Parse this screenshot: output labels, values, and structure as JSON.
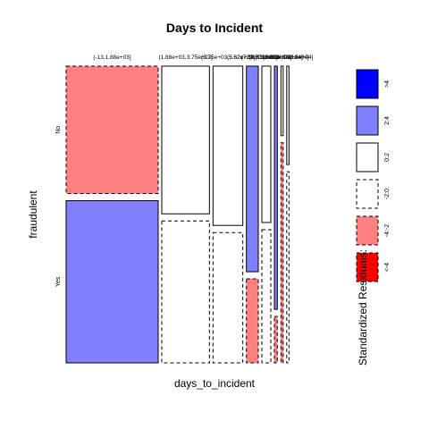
{
  "chart_data": {
    "type": "mosaic",
    "title": "Days to Incident",
    "xlabel": "days_to_incident",
    "ylabel": "fraudulent",
    "categories": [
      "(-13,1.88e+03]",
      "(1.88e+03,3.75e+03]",
      "(3.75e+03,5.62e+03]",
      "(5.62e+03,7.5e+03]",
      "(7.5e+03,9.37e+03]",
      "(9.37e+03,1.12e+04]",
      "(1.12e+04,1.31e+04]",
      "(1.31e+04,1.5e+04]"
    ],
    "y_categories": [
      "No",
      "Yes"
    ],
    "column_fractions": [
      0.3815,
      0.1975,
      0.1235,
      0.0494,
      0.037,
      0.0123,
      0.008,
      0.0062
    ],
    "no_fractions": [
      0.44,
      0.51,
      0.55,
      0.71,
      0.54,
      0.84,
      0.24,
      0.34
    ],
    "residual_class": [
      [
        "-4:-2",
        "2:4"
      ],
      [
        "0:2",
        "-2:0"
      ],
      [
        "0:2",
        "-2:0"
      ],
      [
        "2:4",
        "-4:-2"
      ],
      [
        "0:2",
        "-2:0"
      ],
      [
        "2:4",
        "-4:-2"
      ],
      [
        "0:2",
        "-4:-2"
      ],
      [
        "0:2",
        "-2:0"
      ]
    ],
    "legend": {
      "title": "Standardized Residuals:",
      "entries": [
        ">4",
        "2:4",
        "0:2",
        "-2:0",
        "-4:-2",
        "<-4"
      ],
      "colors": [
        "#0000FF",
        "#8080FF",
        "#FFFFFF",
        "#FFFFFF",
        "#FF8080",
        "#FF0000"
      ],
      "dashed": [
        false,
        false,
        false,
        true,
        true,
        true
      ]
    }
  }
}
